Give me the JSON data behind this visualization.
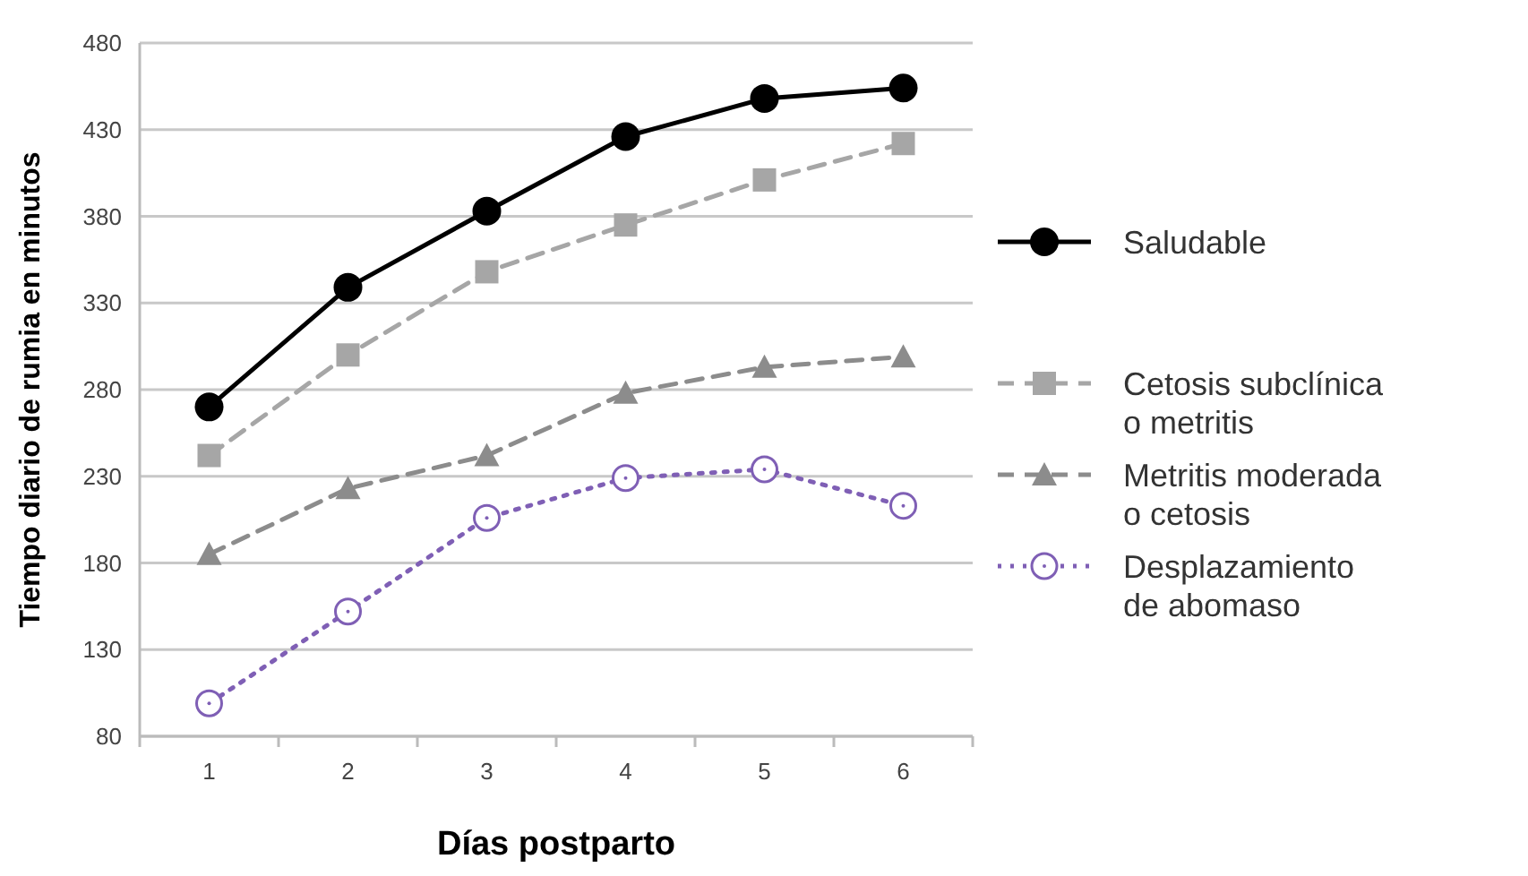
{
  "chart_data": {
    "type": "line",
    "xlabel": "Días postparto",
    "ylabel": "Tiempo diario de rumia en minutos",
    "categories": [
      "1",
      "2",
      "3",
      "4",
      "5",
      "6"
    ],
    "ylim": [
      80,
      480
    ],
    "yticks": [
      80,
      130,
      180,
      230,
      280,
      330,
      380,
      430,
      480
    ],
    "grid": "y",
    "legend": "right",
    "series": [
      {
        "name": "Saludable",
        "color": "#000000",
        "marker": "circle",
        "line_style": "solid",
        "values": [
          270,
          339,
          383,
          426,
          448,
          454
        ]
      },
      {
        "name": "Cetosis subclínica\no metritis",
        "color": "#a6a6a6",
        "marker": "square",
        "line_style": "dashed",
        "values": [
          242,
          300,
          348,
          375,
          401,
          422
        ]
      },
      {
        "name": "Metritis moderada\no cetosis",
        "color": "#8c8c8c",
        "marker": "triangle",
        "line_style": "dashed",
        "values": [
          185,
          223,
          242,
          278,
          293,
          299
        ]
      },
      {
        "name": "Desplazamiento\nde abomaso",
        "color": "#7f5fb5",
        "marker": "circle-open",
        "line_style": "dotted",
        "values": [
          99,
          152,
          206,
          229,
          234,
          213
        ]
      }
    ]
  }
}
